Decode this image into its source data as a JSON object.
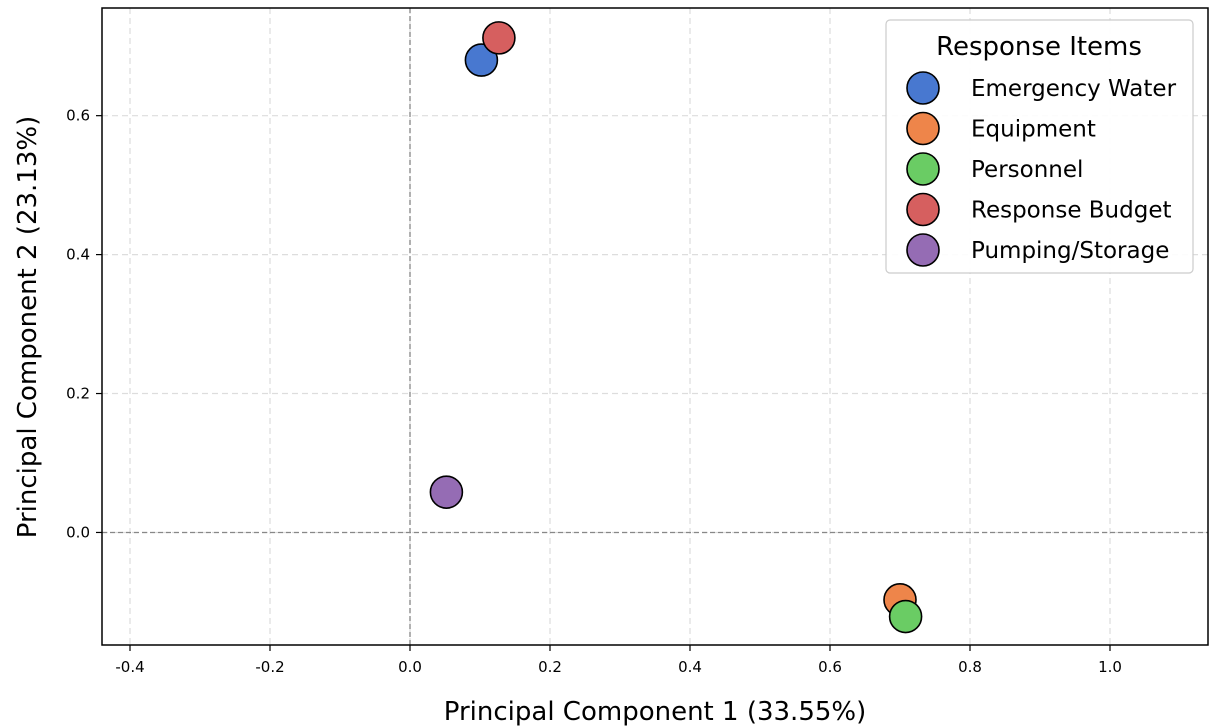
{
  "chart_data": {
    "type": "scatter",
    "xlabel": "Principal Component 1 (33.55%)",
    "ylabel": "Principal Component 2 (23.13%)",
    "xlim": [
      -0.44,
      1.14
    ],
    "ylim": [
      -0.162,
      0.755
    ],
    "xticks": [
      -0.4,
      -0.2,
      0.0,
      0.2,
      0.4,
      0.6,
      0.8,
      1.0
    ],
    "xtick_labels": [
      "-0.4",
      "-0.2",
      "0.0",
      "0.2",
      "0.4",
      "0.6",
      "0.8",
      "1.0"
    ],
    "yticks": [
      0.0,
      0.2,
      0.4,
      0.6
    ],
    "ytick_labels": [
      "0.0",
      "0.2",
      "0.4",
      "0.6"
    ],
    "grid": true,
    "reference_lines": {
      "x": 0,
      "y": 0
    },
    "legend": {
      "title": "Response Items",
      "placement": "top-right"
    },
    "series": [
      {
        "name": "Emergency Water",
        "color": "#4878d0",
        "x": 0.102,
        "y": 0.68
      },
      {
        "name": "Equipment",
        "color": "#ee854a",
        "x": 0.7,
        "y": -0.097
      },
      {
        "name": "Personnel",
        "color": "#6acc64",
        "x": 0.708,
        "y": -0.121
      },
      {
        "name": "Response Budget",
        "color": "#d65f5f",
        "x": 0.127,
        "y": 0.712
      },
      {
        "name": "Pumping/Storage",
        "color": "#956cb4",
        "x": 0.052,
        "y": 0.058
      }
    ]
  }
}
